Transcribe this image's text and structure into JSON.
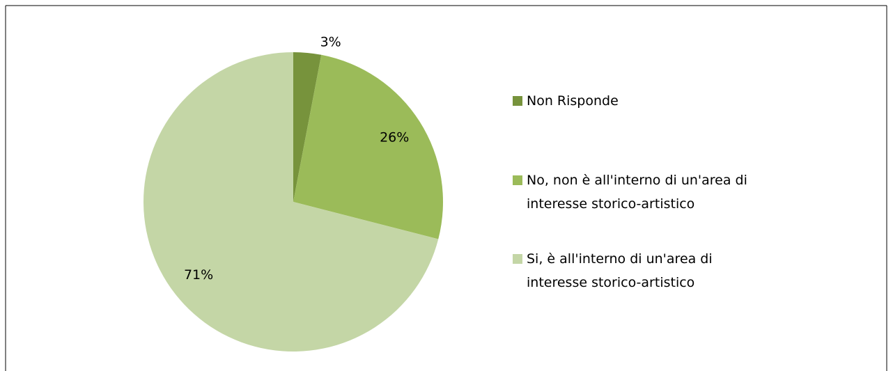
{
  "chart_data": {
    "type": "pie",
    "categories": [
      "Non Risponde",
      "No, non è all'interno di un'area di interesse storico-artistico",
      "Si, è all'interno di un'area di interesse storico-artistico"
    ],
    "values": [
      3,
      26,
      71
    ],
    "value_labels": [
      "3%",
      "26%",
      "71%"
    ],
    "colors": [
      "#77933c",
      "#9bbb59",
      "#c4d6a6"
    ],
    "legend": "right"
  }
}
